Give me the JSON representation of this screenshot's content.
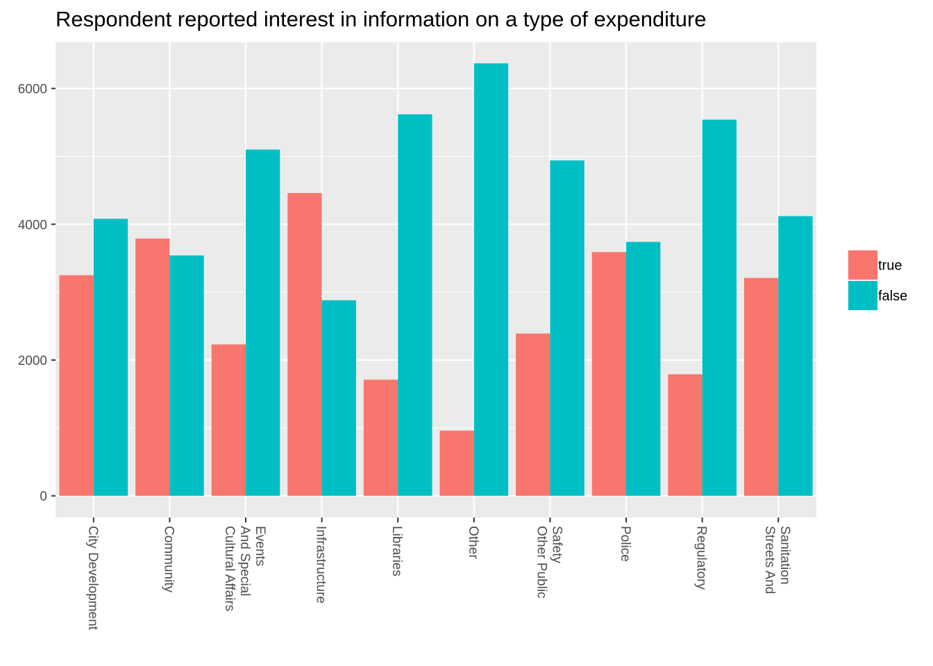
{
  "colors": {
    "true": "#F8766D",
    "false": "#00BFC4",
    "panel": "#EBEBEB",
    "grid": "#FFFFFF",
    "tick_text": "#4D4D4D"
  },
  "chart_data": {
    "type": "bar",
    "title": "Respondent reported interest in information on a type of expenditure",
    "xlabel": "",
    "ylabel": "",
    "categories": [
      "City Development",
      "Community",
      "Cultural Affairs\nAnd Special\nEvents",
      "Infrastructure",
      "Libraries",
      "Other",
      "Other Public\nSafety",
      "Police",
      "Regulatory",
      "Streets And\nSanitation"
    ],
    "series": [
      {
        "name": "true",
        "values": [
          3250,
          3790,
          2230,
          4460,
          1710,
          960,
          2390,
          3590,
          1790,
          3210
        ]
      },
      {
        "name": "false",
        "values": [
          4080,
          3540,
          5100,
          2880,
          5620,
          6370,
          4940,
          3740,
          5540,
          4120
        ]
      }
    ],
    "ylim": [
      -320,
      6680
    ],
    "yticks": [
      0,
      2000,
      4000,
      6000
    ],
    "ytick_labels": [
      "0",
      "2000",
      "4000",
      "6000"
    ],
    "grid": true,
    "legend": {
      "placement": "right",
      "entries": [
        "true",
        "false"
      ]
    }
  }
}
